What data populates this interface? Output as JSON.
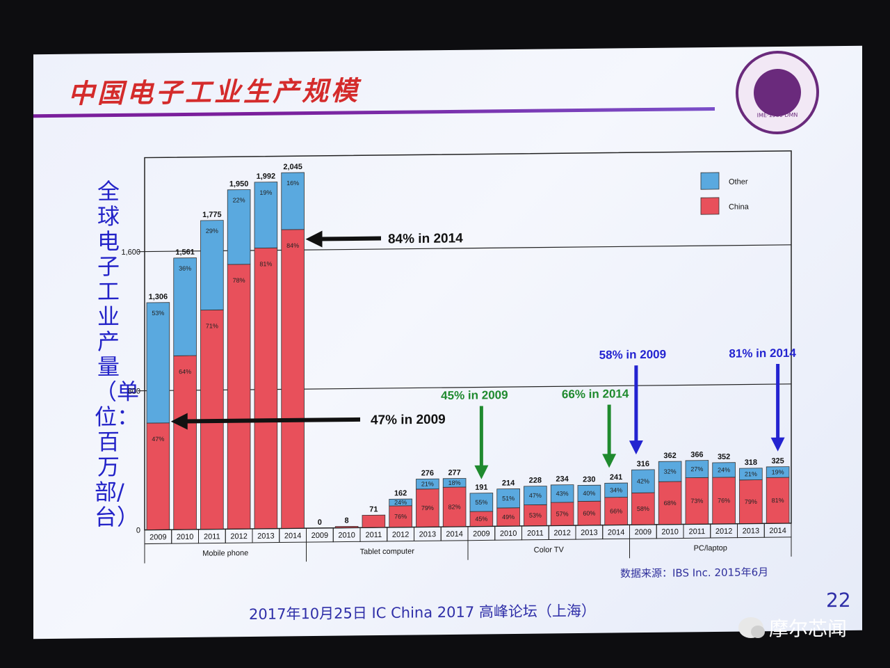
{
  "slide": {
    "title": "中国电子工业生产规模",
    "ylabel": "全球电子工业产量（单位：百万部/台）",
    "source": "数据来源：IBS Inc. 2015年6月",
    "footer": "2017年10月25日 IC China 2017 高峰论坛（上海）",
    "page_number": "22",
    "logo_text": "IME·1980·DMN"
  },
  "watermark": {
    "text": "摩尔芯闻"
  },
  "colors": {
    "china": "#e8505b",
    "other": "#5aa9df",
    "green_annotation": "#1f8a2e",
    "blue_annotation": "#2323d0"
  },
  "chart_data": {
    "type": "bar",
    "stacked": true,
    "groups": [
      "Mobile phone",
      "Tablet computer",
      "Color TV",
      "PC/laptop"
    ],
    "years": [
      "2009",
      "2010",
      "2011",
      "2012",
      "2013",
      "2014"
    ],
    "totals": [
      [
        1306,
        1561,
        1775,
        1950,
        1992,
        2045
      ],
      [
        0,
        8,
        71,
        162,
        276,
        277
      ],
      [
        191,
        214,
        228,
        234,
        230,
        241
      ],
      [
        316,
        362,
        366,
        352,
        318,
        325
      ]
    ],
    "total_labels": [
      [
        "1,306",
        "1,561",
        "1,775",
        "1,950",
        "1,992",
        "2,045"
      ],
      [
        "0",
        "8",
        "71",
        "162",
        "276",
        "277"
      ],
      [
        "191",
        "214",
        "228",
        "234",
        "230",
        "241"
      ],
      [
        "316",
        "362",
        "366",
        "352",
        "318",
        "325"
      ]
    ],
    "series": [
      {
        "name": "China",
        "pct": [
          [
            47,
            64,
            71,
            78,
            81,
            84
          ],
          [
            null,
            null,
            null,
            76,
            79,
            82
          ],
          [
            45,
            49,
            53,
            57,
            60,
            66
          ],
          [
            58,
            68,
            73,
            76,
            79,
            81
          ]
        ]
      },
      {
        "name": "Other",
        "pct": [
          [
            53,
            36,
            29,
            22,
            19,
            16
          ],
          [
            null,
            null,
            null,
            24,
            21,
            18
          ],
          [
            55,
            51,
            47,
            43,
            40,
            34
          ],
          [
            42,
            32,
            27,
            24,
            21,
            19
          ]
        ]
      }
    ],
    "y_ticks": [
      "0",
      "800",
      "1,600"
    ],
    "ylim": [
      0,
      2100
    ],
    "reference_lines": [
      800,
      1600
    ],
    "legend": [
      "Other",
      "China"
    ],
    "legend_position": "top-right",
    "annotations": [
      {
        "text": "84% in 2014",
        "color": "black"
      },
      {
        "text": "47% in 2009",
        "color": "black"
      },
      {
        "text": "45% in 2009",
        "color": "green"
      },
      {
        "text": "66% in 2014",
        "color": "green"
      },
      {
        "text": "58% in 2009",
        "color": "blue"
      },
      {
        "text": "81% in 2014",
        "color": "blue"
      }
    ]
  }
}
